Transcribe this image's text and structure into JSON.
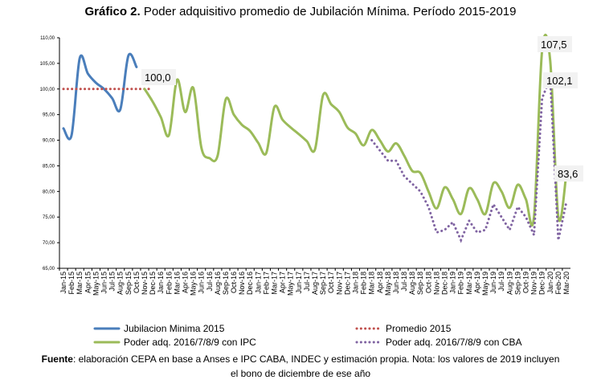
{
  "chart_data": {
    "type": "line",
    "title_bold": "Gráfico 2.",
    "title_rest": " Poder adquisitivo promedio de Jubilación Mínima. Período 2015-2019",
    "xlabel": "",
    "ylabel": "",
    "ylim": [
      65,
      110
    ],
    "yticks": [
      "65,00",
      "70,00",
      "75,00",
      "80,00",
      "85,00",
      "90,00",
      "95,00",
      "100,00",
      "105,00",
      "110,00"
    ],
    "grid": false,
    "legend_position": "bottom",
    "categories": [
      "Jan-15",
      "Feb-15",
      "Mar-15",
      "Apr-15",
      "May-15",
      "Jun-15",
      "Jul-15",
      "Aug-15",
      "Sep-15",
      "Oct-15",
      "Nov-15",
      "Dec-15",
      "Jan-16",
      "Feb-16",
      "Mar-16",
      "Apr-16",
      "May-16",
      "Jun-16",
      "Jul-16",
      "Aug-16",
      "Sep-16",
      "Oct-16",
      "Nov-16",
      "Dec-16",
      "Jan-17",
      "Feb-17",
      "Mar-17",
      "Apr-17",
      "May-17",
      "Jun-17",
      "Jul-17",
      "Aug-17",
      "Sep-17",
      "Oct-17",
      "Nov-17",
      "Dec-17",
      "Jan-18",
      "Feb-18",
      "Mar-18",
      "Apr-18",
      "May-18",
      "Jun-18",
      "Jul-18",
      "Aug-18",
      "Sep-18",
      "Oct-18",
      "Nov-18",
      "Dec-18",
      "Jan-19",
      "Feb-19",
      "Mar-19",
      "Apr-19",
      "May-19",
      "Jun-19",
      "Jul-19",
      "Aug-19",
      "Sep-19",
      "Oct-19",
      "Nov-19",
      "Dec-19",
      "Jan-20",
      "Feb-20",
      "Mar-20"
    ],
    "series": [
      {
        "name": "Jubilacion Minima 2015",
        "color": "#4a7ebb",
        "style": "solid",
        "values": [
          92.3,
          91.0,
          106.0,
          103.0,
          101.2,
          100.0,
          98.2,
          96.0,
          106.5,
          104.3,
          null,
          null,
          null,
          null,
          null,
          null,
          null,
          null,
          null,
          null,
          null,
          null,
          null,
          null,
          null,
          null,
          null,
          null,
          null,
          null,
          null,
          null,
          null,
          null,
          null,
          null,
          null,
          null,
          null,
          null,
          null,
          null,
          null,
          null,
          null,
          null,
          null,
          null,
          null,
          null,
          null,
          null,
          null,
          null,
          null,
          null,
          null,
          null,
          null,
          null,
          null,
          null,
          null
        ]
      },
      {
        "name": "Promedio 2015",
        "color": "#c0504d",
        "style": "dotted",
        "values": [
          100,
          100,
          100,
          100,
          100,
          100,
          100,
          100,
          100,
          100,
          100,
          100,
          null,
          null,
          null,
          null,
          null,
          null,
          null,
          null,
          null,
          null,
          null,
          null,
          null,
          null,
          null,
          null,
          null,
          null,
          null,
          null,
          null,
          null,
          null,
          null,
          null,
          null,
          null,
          null,
          null,
          null,
          null,
          null,
          null,
          null,
          null,
          null,
          null,
          null,
          null,
          null,
          null,
          null,
          null,
          null,
          null,
          null,
          null,
          null,
          null,
          null,
          null
        ]
      },
      {
        "name": "Poder adq. 2016/7/8/9 con IPC",
        "color": "#9bbb59",
        "style": "solid",
        "values": [
          null,
          null,
          null,
          null,
          null,
          null,
          null,
          null,
          null,
          null,
          100.0,
          97.5,
          94.5,
          91.0,
          101.8,
          95.5,
          100.2,
          88.5,
          86.5,
          87.0,
          98.0,
          95.0,
          93.0,
          91.8,
          89.5,
          87.5,
          96.5,
          94.0,
          92.5,
          91.2,
          89.8,
          88.2,
          98.8,
          97.0,
          95.5,
          92.5,
          91.3,
          89.0,
          92.0,
          90.0,
          87.8,
          89.4,
          87.0,
          84.0,
          83.6,
          80.0,
          76.7,
          80.8,
          78.5,
          75.6,
          80.6,
          78.5,
          75.6,
          81.6,
          80.0,
          76.8,
          81.3,
          78.5,
          75.0,
          107.5,
          105.5,
          75.0,
          83.6
        ]
      },
      {
        "name": "Poder adq. 2016/7/8/9 con CBA",
        "color": "#8064a2",
        "style": "dotted",
        "values": [
          null,
          null,
          null,
          null,
          null,
          null,
          null,
          null,
          null,
          null,
          null,
          null,
          null,
          null,
          null,
          null,
          null,
          null,
          null,
          null,
          null,
          null,
          null,
          null,
          null,
          null,
          null,
          null,
          null,
          null,
          null,
          null,
          null,
          null,
          null,
          null,
          null,
          null,
          90.0,
          88.0,
          86.0,
          86.0,
          83.0,
          81.5,
          80.0,
          77.0,
          72.0,
          72.5,
          74.0,
          70.5,
          74.3,
          72.0,
          72.5,
          77.5,
          75.0,
          72.5,
          77.0,
          75.0,
          71.5,
          98.2,
          102.1,
          70.5,
          78.0
        ]
      }
    ],
    "annotations": [
      {
        "text": "100,0",
        "series": 2,
        "index": 10
      },
      {
        "text": "107,5",
        "series": 2,
        "index": 59
      },
      {
        "text": "102,1",
        "series": 3,
        "index": 60
      },
      {
        "text": "83,6",
        "series": 2,
        "index": 62
      }
    ]
  },
  "source": {
    "label": "Fuente",
    "line1": ": elaboración CEPA en base a Anses e IPC CABA, INDEC y estimación propia. Nota: los valores de 2019 incluyen",
    "line2": "el bono de diciembre de ese año"
  }
}
